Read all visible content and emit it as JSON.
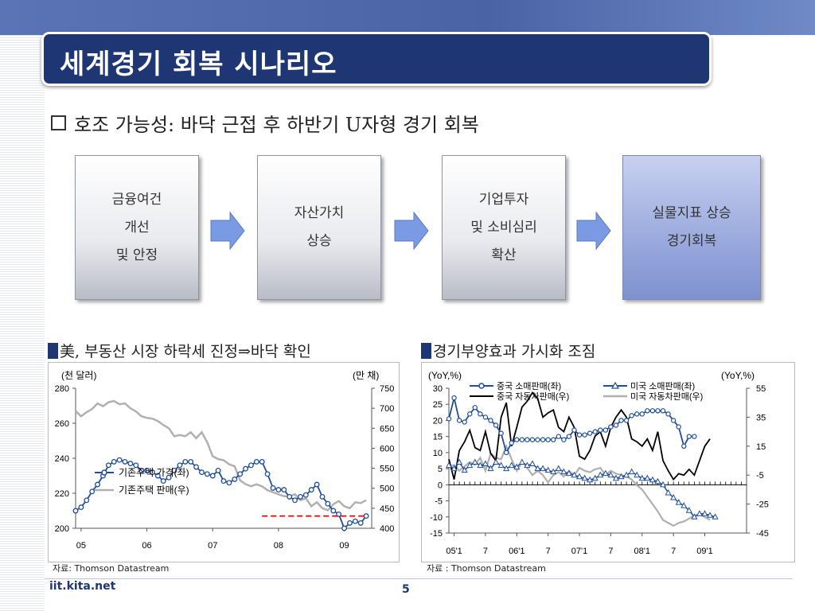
{
  "title": "세계경기  회복 시나리오",
  "bullet": "호조 가능성: 바닥 근접 후 하반기 U자형 경기 회복",
  "flow": [
    {
      "text": "금융여건\n개선\n및 안정"
    },
    {
      "text": "자산가치\n상승"
    },
    {
      "text": "기업투자\n및 소비심리\n확산"
    },
    {
      "text": "실물지표 상승\n경기회복"
    }
  ],
  "colors": {
    "title_bg": "#1f3674",
    "arrow": "#7a9be3",
    "series_blue": "#1f4e9c",
    "series_gray": "#b0b0b0",
    "series_black": "#000000",
    "dash_red": "#e00000"
  },
  "left_header": "美, 부동산 시장 하락세 진정⇒바닥 확인",
  "right_header": "경기부양효과 가시화 조짐",
  "left_source": "자료:  Thomson Datastream",
  "right_source": "자료 : Thomson Datastream",
  "footer_url": "iit.kita.net",
  "page_number": "5",
  "chart_data": [
    {
      "type": "line",
      "y_left_unit": "(천 달러)",
      "y_right_unit": "(만 채)",
      "ylim_left": [
        200,
        280
      ],
      "ylim_right": [
        400,
        750
      ],
      "yticks_left": [
        "280",
        "260",
        "240",
        "220",
        "200"
      ],
      "yticks_right": [
        "750",
        "700",
        "650",
        "600",
        "550",
        "500",
        "450",
        "400"
      ],
      "xlabels": [
        "05",
        "06",
        "07",
        "08",
        "09"
      ],
      "xlim": [
        0,
        54
      ],
      "x_tick_months": [
        1,
        13,
        25,
        37,
        49
      ],
      "grid": false,
      "legend_position": "middle-left",
      "series": [
        {
          "name": "기존주택 가격(좌)",
          "axis": "left",
          "marker": "circle",
          "values": [
            210,
            212,
            216,
            221,
            225,
            230,
            236,
            238,
            239,
            238,
            237,
            236,
            233,
            233,
            232,
            230,
            227,
            229,
            233,
            236,
            238,
            238,
            235,
            232,
            231,
            230,
            233,
            227,
            226,
            228,
            231,
            234,
            236,
            238,
            238,
            231,
            223,
            222,
            222,
            218,
            216,
            218,
            219,
            222,
            225,
            218,
            214,
            210,
            208,
            200,
            203,
            204,
            203,
            207
          ]
        },
        {
          "name": "기존주택 판매(우)",
          "axis": "right",
          "marker": "none",
          "values": [
            693,
            680,
            690,
            698,
            712,
            705,
            715,
            718,
            710,
            712,
            700,
            692,
            680,
            676,
            674,
            668,
            658,
            650,
            630,
            633,
            630,
            640,
            625,
            640,
            615,
            580,
            573,
            570,
            560,
            555,
            520,
            510,
            505,
            510,
            505,
            495,
            490,
            485,
            480,
            480,
            485,
            470,
            475,
            455,
            465,
            450,
            445,
            460,
            468,
            455,
            450,
            465,
            463,
            470
          ]
        },
        {
          "name": "",
          "axis": "left",
          "style": "dashed",
          "values": [
            207,
            207
          ],
          "x_range": [
            34,
            53
          ]
        }
      ]
    },
    {
      "type": "line",
      "y_left_unit": "(YoY,%)",
      "y_right_unit": "(YoY,%)",
      "ylim_left": [
        -15,
        30
      ],
      "ylim_right": [
        -45,
        55
      ],
      "yticks_left": [
        "30",
        "25",
        "20",
        "15",
        "10",
        "5",
        "0",
        "-5",
        "-10",
        "-15"
      ],
      "yticks_right": [
        "55",
        "35",
        "15",
        "-5",
        "-25",
        "-45"
      ],
      "xlabels": [
        "05'1",
        "7",
        "06'1",
        "7",
        "07'1",
        "7",
        "08'1",
        "7",
        "09'1"
      ],
      "xlim": [
        0,
        57
      ],
      "x_tick_months": [
        1,
        7,
        13,
        19,
        25,
        31,
        37,
        43,
        49
      ],
      "grid": false,
      "legend_position": "top",
      "series": [
        {
          "name": "중국 소매판매(좌)",
          "axis": "left",
          "marker": "circle",
          "values": [
            20.5,
            27,
            20,
            19.5,
            22,
            24,
            22,
            21,
            20,
            18.5,
            16,
            10,
            13,
            14,
            14,
            14,
            14,
            14,
            14,
            14,
            14,
            15,
            14,
            15,
            17,
            15.5,
            15.5,
            16,
            16.5,
            17,
            17,
            18,
            18.5,
            20,
            20,
            21.5,
            22,
            22,
            23,
            23,
            23,
            23,
            22,
            20,
            18,
            12,
            15,
            15
          ]
        },
        {
          "name": "미국 소매판매(좌)",
          "axis": "left",
          "marker": "triangle",
          "values": [
            6,
            5,
            7,
            4.5,
            6,
            7,
            6,
            6.5,
            5,
            7,
            6,
            5,
            6,
            5.5,
            7,
            6,
            6.5,
            5,
            5,
            4.5,
            4,
            5,
            4,
            3.5,
            3,
            2.5,
            2,
            1.5,
            2,
            3,
            3.5,
            3,
            2,
            2.5,
            3,
            4,
            3,
            2,
            2,
            1.5,
            1,
            0,
            -2.5,
            -4,
            -5.5,
            -6.5,
            -8,
            -10,
            -9,
            -9,
            -9.5,
            -10
          ]
        },
        {
          "name": "중국 자동차판매(우)",
          "axis": "right",
          "marker": "none",
          "values": [
            6,
            -8,
            12,
            18,
            26,
            14,
            12,
            25,
            10,
            5,
            35,
            45,
            15,
            28,
            42,
            46,
            52,
            48,
            35,
            38,
            40,
            28,
            25,
            35,
            28,
            8,
            6,
            12,
            22,
            25,
            15,
            28,
            35,
            40,
            35,
            20,
            18,
            15,
            20,
            12,
            25,
            5,
            -2,
            -8,
            -4,
            -5,
            -1,
            -5,
            5,
            15,
            20
          ]
        },
        {
          "name": "미국 자동차판매(우)",
          "axis": "right",
          "marker": "none",
          "values": [
            1,
            2,
            -2,
            1,
            4,
            2,
            7,
            -2,
            10,
            7,
            6,
            15,
            6,
            -2,
            4,
            0,
            -5,
            -2,
            -5,
            -10,
            -5,
            -3,
            -6,
            -2,
            -5,
            0,
            -2,
            -3,
            -1,
            0,
            -5,
            -2,
            -4,
            -5,
            -6,
            -8,
            -12,
            -15,
            -20,
            -25,
            -30,
            -36,
            -38,
            -40,
            -38,
            -37,
            -35,
            -33,
            -32,
            -34,
            -36
          ]
        }
      ]
    }
  ]
}
